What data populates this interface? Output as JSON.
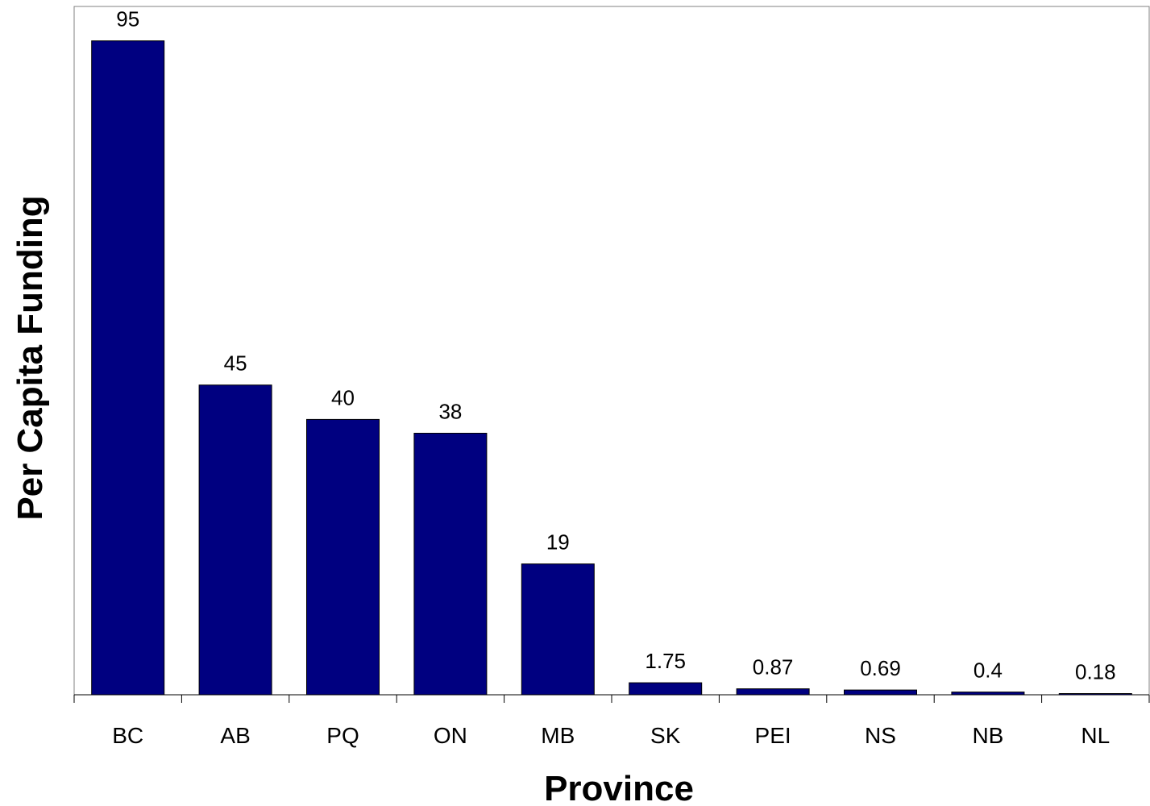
{
  "chart_data": {
    "type": "bar",
    "title": "",
    "xlabel": "Province",
    "ylabel": "Per Capita Funding",
    "categories": [
      "BC",
      "AB",
      "PQ",
      "ON",
      "MB",
      "SK",
      "PEI",
      "NS",
      "NB",
      "NL"
    ],
    "values": [
      95,
      45,
      40,
      38,
      19,
      1.75,
      0.87,
      0.69,
      0.4,
      0.18
    ],
    "data_labels": [
      "95",
      "45",
      "40",
      "38",
      "19",
      "1.75",
      "0.87",
      "0.69",
      "0.4",
      "0.18"
    ],
    "ylim": [
      0,
      100
    ],
    "grid": false,
    "legend": "none",
    "bar_color": "#000080"
  }
}
